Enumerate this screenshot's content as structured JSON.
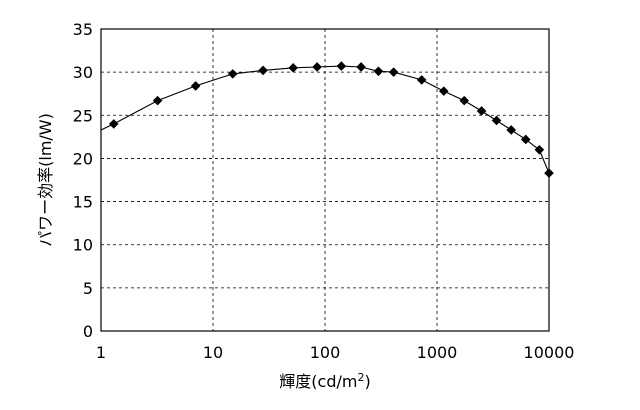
{
  "chart_data": {
    "type": "line",
    "title": "",
    "xlabel": "輝度(cd/m2)",
    "xlabel_parts": {
      "main": "輝度(cd/m",
      "sup": "2",
      "tail": ")"
    },
    "ylabel": "パワー効率(lm/W)",
    "xscale": "log",
    "xlim": [
      1,
      10000
    ],
    "ylim": [
      0,
      35
    ],
    "x_ticks": [
      1,
      10,
      100,
      1000,
      10000
    ],
    "x_tick_labels": [
      "1",
      "10",
      "100",
      "1000",
      "10000"
    ],
    "y_ticks": [
      0,
      5,
      10,
      15,
      20,
      25,
      30,
      35
    ],
    "y_tick_labels": [
      "0",
      "5",
      "10",
      "15",
      "20",
      "25",
      "30",
      "35"
    ],
    "grid": "dashed",
    "legend": "none",
    "marker": "diamond",
    "line_color": "#000000",
    "series": [
      {
        "x": [
          1.3,
          3.2,
          7,
          15,
          28,
          52,
          85,
          140,
          210,
          300,
          410,
          730,
          1150,
          1750,
          2500,
          3400,
          4600,
          6200,
          8200,
          10000
        ],
        "y": [
          24.0,
          26.7,
          28.4,
          29.8,
          30.2,
          30.5,
          30.6,
          30.7,
          30.6,
          30.1,
          30.0,
          29.1,
          27.8,
          26.7,
          25.5,
          24.4,
          23.3,
          22.2,
          21.0,
          18.3
        ]
      }
    ],
    "curve_start": {
      "x": 1,
      "y": 23.3
    }
  }
}
